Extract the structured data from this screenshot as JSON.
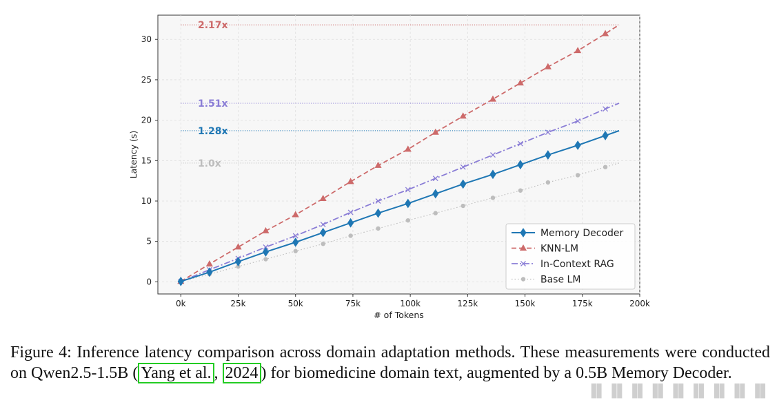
{
  "chart_data": {
    "type": "line",
    "title": "",
    "xlabel": "# of Tokens",
    "ylabel": "Latency (s)",
    "xlim": [
      -10000,
      200000
    ],
    "ylim": [
      -1.5,
      33
    ],
    "xticks": [
      0,
      25000,
      50000,
      75000,
      100000,
      125000,
      150000,
      175000,
      200000
    ],
    "xtick_labels": [
      "0k",
      "25k",
      "50k",
      "75k",
      "100k",
      "125k",
      "150k",
      "175k",
      "200k"
    ],
    "yticks": [
      0,
      5,
      10,
      15,
      20,
      25,
      30
    ],
    "ytick_labels": [
      "0",
      "5",
      "10",
      "15",
      "20",
      "25",
      "30"
    ],
    "grid": true,
    "legend_position": "bottom-right",
    "x": [
      0,
      12500,
      25000,
      37000,
      50000,
      62000,
      74000,
      86000,
      99000,
      111000,
      123000,
      136000,
      148000,
      160000,
      173000,
      185000,
      191000
    ],
    "series": [
      {
        "name": "Memory Decoder",
        "color": "#1f77b4",
        "style": "solid",
        "marker": "diamond",
        "values": [
          0.05,
          1.2,
          2.5,
          3.7,
          4.9,
          6.1,
          7.3,
          8.5,
          9.7,
          10.9,
          12.1,
          13.3,
          14.5,
          15.7,
          16.9,
          18.1,
          18.7
        ]
      },
      {
        "name": "KNN-LM",
        "color": "#cd6a6a",
        "style": "dashed",
        "marker": "triangle",
        "values": [
          0.05,
          2.2,
          4.3,
          6.3,
          8.3,
          10.3,
          12.4,
          14.4,
          16.4,
          18.5,
          20.5,
          22.6,
          24.6,
          26.6,
          28.6,
          30.7,
          31.8
        ]
      },
      {
        "name": "In-Context RAG",
        "color": "#8a7dd6",
        "style": "dashdot",
        "marker": "x",
        "values": [
          0.05,
          1.5,
          2.9,
          4.3,
          5.7,
          7.1,
          8.6,
          10.0,
          11.4,
          12.8,
          14.2,
          15.7,
          17.1,
          18.5,
          19.9,
          21.4,
          22.1
        ]
      },
      {
        "name": "Base LM",
        "color": "#bdbdbd",
        "style": "dotted",
        "marker": "circle",
        "values": [
          0.05,
          0.95,
          1.9,
          2.8,
          3.8,
          4.7,
          5.7,
          6.6,
          7.6,
          8.5,
          9.4,
          10.4,
          11.3,
          12.3,
          13.2,
          14.2,
          14.7
        ]
      }
    ],
    "annotations": [
      {
        "text": "2.17x",
        "y": 31.8,
        "color": "#cd6a6a"
      },
      {
        "text": "1.51x",
        "y": 22.1,
        "color": "#8a7dd6"
      },
      {
        "text": "1.28x",
        "y": 18.7,
        "color": "#1f77b4"
      },
      {
        "text": "1.0x",
        "y": 14.7,
        "color": "#bdbdbd"
      }
    ]
  },
  "caption": {
    "part1": "Figure 4: Inference latency comparison across domain adaptation methods. These measurements were conducted on Qwen2.5-1.5B (",
    "cite1": "Yang et al.",
    "sep": ", ",
    "cite2": "2024",
    "part2": ") for biomedicine domain text, augmented by a 0.5B Memory Decoder."
  }
}
